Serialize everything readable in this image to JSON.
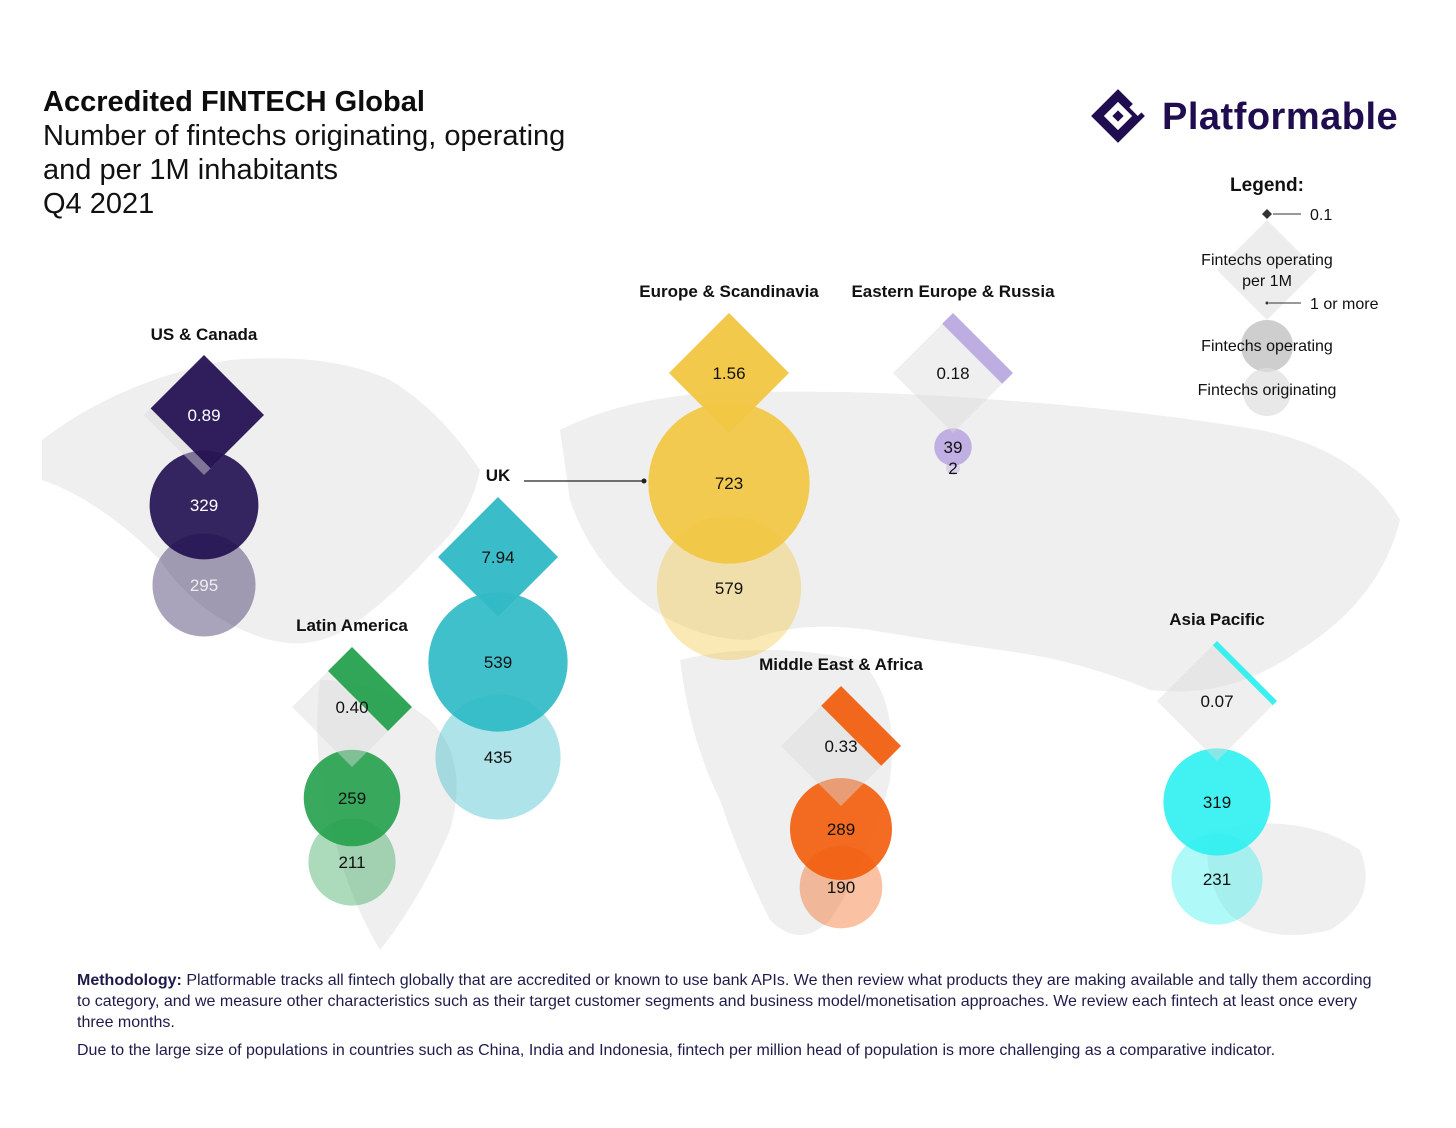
{
  "header": {
    "title": "Accredited FINTECH Global",
    "subtitle_lines": [
      "Number of fintechs originating, operating",
      "and per 1M inhabitants",
      "Q4 2021"
    ]
  },
  "brand": {
    "name": "Platformable",
    "color": "#1f0d4f"
  },
  "legend": {
    "title": "Legend:",
    "scale_small": "0.1",
    "scale_large": "1 or more",
    "per_million_label_1": "Fintechs operating",
    "per_million_label_2": "per 1M",
    "operating_label": "Fintechs operating",
    "originating_label": "Fintechs originating"
  },
  "chart_data": {
    "type": "bubble-map",
    "title": "Accredited FINTECH Global",
    "subtitle": "Number of fintechs originating, operating and per 1M inhabitants — Q4 2021",
    "metrics": [
      "Fintechs operating per 1M",
      "Fintechs operating",
      "Fintechs originating"
    ],
    "regions": [
      {
        "name": "US & Canada",
        "per_million": "0.89",
        "operating": "329",
        "originating": "295",
        "color": "#1f0d4f"
      },
      {
        "name": "UK",
        "per_million": "7.94",
        "operating": "539",
        "originating": "435",
        "color": "#2bb9c5"
      },
      {
        "name": "Latin America",
        "per_million": "0.40",
        "operating": "259",
        "originating": "211",
        "color": "#22a04b"
      },
      {
        "name": "Europe & Scandinavia",
        "per_million": "1.56",
        "operating": "723",
        "originating": "579",
        "color": "#f2c53d"
      },
      {
        "name": "Eastern Europe & Russia",
        "per_million": "0.18",
        "operating": "39",
        "originating": "2",
        "color": "#b9a7e0"
      },
      {
        "name": "Middle East & Africa",
        "per_million": "0.33",
        "operating": "289",
        "originating": "190",
        "color": "#f25c0a"
      },
      {
        "name": "Asia Pacific",
        "per_million": "0.07",
        "operating": "319",
        "originating": "231",
        "color": "#2ef0f0"
      }
    ]
  },
  "footer": {
    "methodology_label": "Methodology:",
    "methodology_text": " Platformable tracks all fintech globally that are accredited or known to use bank APIs. We then review what products they are making available and tally them according to category, and we measure other characteristics such as their target customer segments and business model/monetisation approaches. We review each fintech at least once every three months.",
    "note": "Due to the large size of populations in countries such as China, India and Indonesia, fintech per million head of population is more challenging as a comparative indicator."
  }
}
